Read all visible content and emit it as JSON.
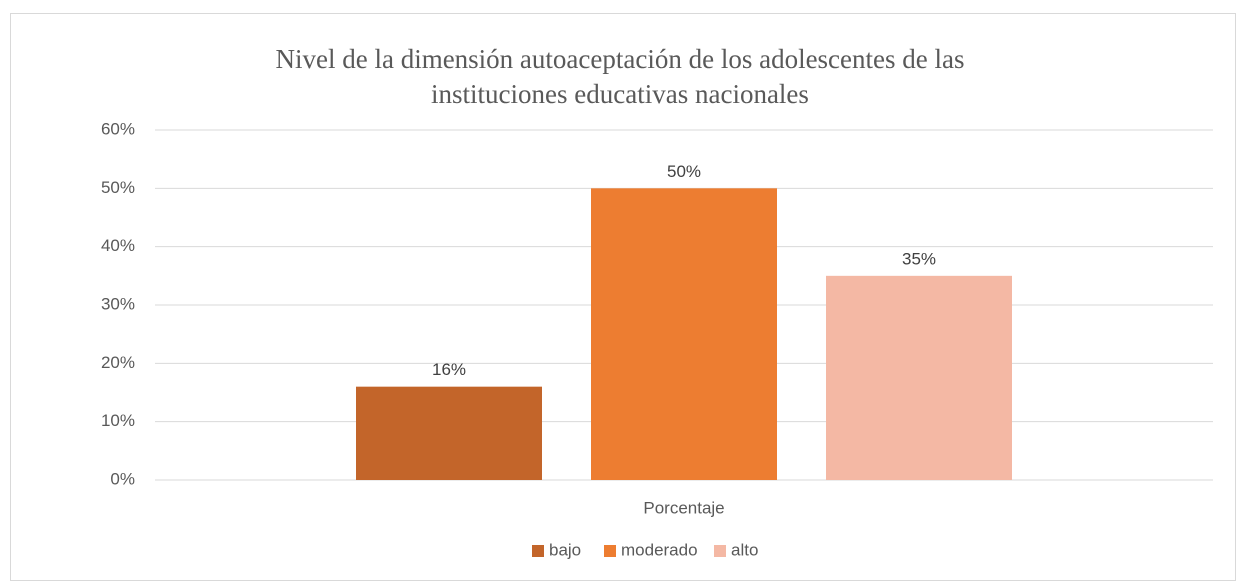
{
  "chart_data": {
    "type": "bar",
    "title": "Nivel de la dimensión autoaceptación de los adolescentes de las instituciones educativas nacionales",
    "categories": [
      "Porcentaje"
    ],
    "series": [
      {
        "name": "bajo",
        "color": "#c3652a",
        "values": [
          16
        ],
        "value_labels": [
          "16%"
        ]
      },
      {
        "name": "moderado",
        "color": "#ed7d31",
        "values": [
          50
        ],
        "value_labels": [
          "50%"
        ]
      },
      {
        "name": "alto",
        "color": "#f4b8a4",
        "values": [
          35
        ],
        "value_labels": [
          "35%"
        ]
      }
    ],
    "ylim": [
      0,
      60
    ],
    "yticks": [
      {
        "value": 0,
        "label": "0%"
      },
      {
        "value": 10,
        "label": "10%"
      },
      {
        "value": 20,
        "label": "20%"
      },
      {
        "value": 30,
        "label": "30%"
      },
      {
        "value": 40,
        "label": "40%"
      },
      {
        "value": 50,
        "label": "50%"
      },
      {
        "value": 60,
        "label": "60%"
      }
    ],
    "grid": true,
    "legend": "bottom"
  }
}
